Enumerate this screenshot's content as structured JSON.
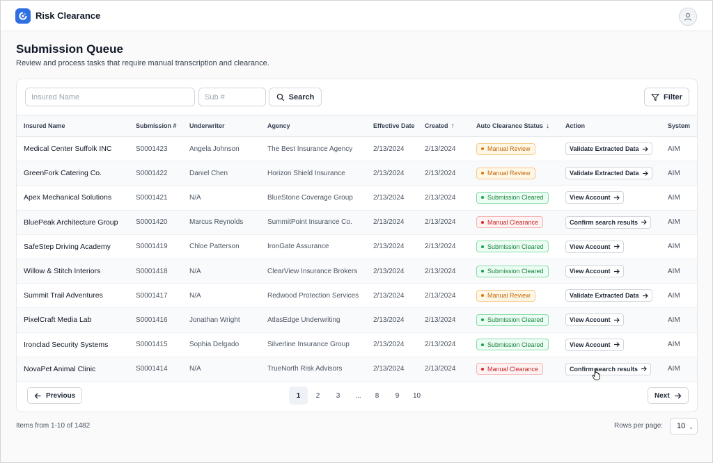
{
  "app": {
    "title": "Risk Clearance",
    "logo_icon": "app-logo-icon",
    "brand_color": "#2f6fe4"
  },
  "page": {
    "title": "Submission Queue",
    "subtitle": "Review and process tasks that require manual transcription and clearance."
  },
  "search": {
    "insured_placeholder": "Insured Name",
    "insured_value": "",
    "sub_placeholder": "Sub #",
    "sub_value": "",
    "search_label": "Search",
    "filter_label": "Filter"
  },
  "table": {
    "headers": {
      "insured": "Insured Name",
      "submission": "Submission #",
      "underwriter": "Underwriter",
      "agency": "Agency",
      "effective": "Effective Date",
      "created": "Created",
      "status": "Auto Clearance Status",
      "action": "Action",
      "system": "System"
    },
    "rows": [
      {
        "insured": "Medical Center Suffolk INC",
        "sub": "S0001423",
        "underwriter": "Angela Johnson",
        "agency": "The Best Insurance Agency",
        "effective": "2/13/2024",
        "created": "2/13/2024",
        "status": "Manual Review",
        "status_type": "review",
        "action": "Validate Extracted Data",
        "system": "AIM"
      },
      {
        "insured": "GreenFork Catering Co.",
        "sub": "S0001422",
        "underwriter": "Daniel Chen",
        "agency": "Horizon Shield Insurance",
        "effective": "2/13/2024",
        "created": "2/13/2024",
        "status": "Manual Review",
        "status_type": "review",
        "action": "Validate Extracted Data",
        "system": "AIM"
      },
      {
        "insured": "Apex Mechanical Solutions",
        "sub": "S0001421",
        "underwriter": "N/A",
        "agency": "BlueStone Coverage Group",
        "effective": "2/13/2024",
        "created": "2/13/2024",
        "status": "Submission Cleared",
        "status_type": "cleared",
        "action": "View Account",
        "system": "AIM"
      },
      {
        "insured": "BluePeak Architecture Group",
        "sub": "S0001420",
        "underwriter": "Marcus Reynolds",
        "agency": "SummitPoint Insurance Co.",
        "effective": "2/13/2024",
        "created": "2/13/2024",
        "status": "Manual Clearance",
        "status_type": "manual",
        "action": "Confirm search results",
        "system": "AIM"
      },
      {
        "insured": "SafeStep Driving Academy",
        "sub": "S0001419",
        "underwriter": "Chloe Patterson",
        "agency": "IronGate Assurance",
        "effective": "2/13/2024",
        "created": "2/13/2024",
        "status": "Submission Cleared",
        "status_type": "cleared",
        "action": "View Account",
        "system": "AIM"
      },
      {
        "insured": "Willow & Stitch Interiors",
        "sub": "S0001418",
        "underwriter": "N/A",
        "agency": "ClearView Insurance Brokers",
        "effective": "2/13/2024",
        "created": "2/13/2024",
        "status": "Submission Cleared",
        "status_type": "cleared",
        "action": "View Account",
        "system": "AIM"
      },
      {
        "insured": "Summit Trail Adventures",
        "sub": "S0001417",
        "underwriter": "N/A",
        "agency": "Redwood Protection Services",
        "effective": "2/13/2024",
        "created": "2/13/2024",
        "status": "Manual Review",
        "status_type": "review",
        "action": "Validate Extracted Data",
        "system": "AIM"
      },
      {
        "insured": "PixelCraft Media Lab",
        "sub": "S0001416",
        "underwriter": "Jonathan Wright",
        "agency": "AtlasEdge Underwriting",
        "effective": "2/13/2024",
        "created": "2/13/2024",
        "status": "Submission Cleared",
        "status_type": "cleared",
        "action": "View Account",
        "system": "AIM"
      },
      {
        "insured": "Ironclad Security Systems",
        "sub": "S0001415",
        "underwriter": "Sophia Delgado",
        "agency": "Silverline Insurance Group",
        "effective": "2/13/2024",
        "created": "2/13/2024",
        "status": "Submission Cleared",
        "status_type": "cleared",
        "action": "View Account",
        "system": "AIM"
      },
      {
        "insured": "NovaPet Animal Clinic",
        "sub": "S0001414",
        "underwriter": "N/A",
        "agency": "TrueNorth Risk Advisors",
        "effective": "2/13/2024",
        "created": "2/13/2024",
        "status": "Manual Clearance",
        "status_type": "manual",
        "action": "Confirm search results",
        "system": "AIM"
      }
    ]
  },
  "pagination": {
    "previous_label": "Previous",
    "next_label": "Next",
    "pages": [
      "1",
      "2",
      "3",
      "...",
      "8",
      "9",
      "10"
    ],
    "current_page": "1"
  },
  "footer": {
    "items_text": "Items from 1-10 of 1482",
    "rows_label": "Rows per page:",
    "rows_value": "10"
  },
  "colors": {
    "review": "#c2680c",
    "cleared": "#15803d",
    "manual": "#c62828"
  }
}
